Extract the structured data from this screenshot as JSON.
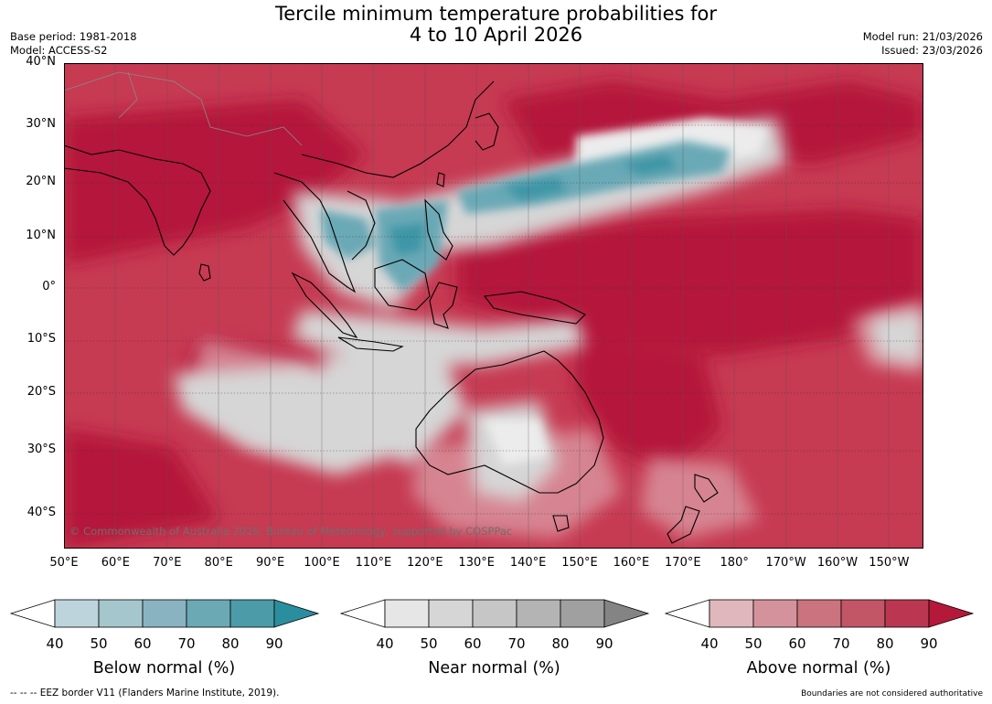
{
  "title": {
    "line1": "Tercile minimum temperature probabilities for",
    "line2": "4 to 10 April 2026"
  },
  "meta": {
    "base_period": "Base period: 1981-2018",
    "model": "Model: ACCESS-S2",
    "model_run": "Model run: 21/03/2026",
    "issued": "Issued: 23/03/2026"
  },
  "map": {
    "lat_labels": [
      "40°N",
      "30°N",
      "20°N",
      "10°N",
      "0°",
      "10°S",
      "20°S",
      "30°S",
      "40°S"
    ],
    "lon_labels": [
      "50°E",
      "60°E",
      "70°E",
      "80°E",
      "90°E",
      "100°E",
      "110°E",
      "120°E",
      "130°E",
      "140°E",
      "150°E",
      "160°E",
      "170°E",
      "180°",
      "170°W",
      "160°W",
      "150°W"
    ],
    "copyright": "© Commonwealth of Australia 2026, Bureau of Meteorology, supported by COSPPac",
    "colors": {
      "above_dominant": "#b5193a",
      "ocean_background": "#c63a52",
      "near_normal": "#d9d9d9",
      "below_normal": "#5ba3b2",
      "land_outline": "#000000"
    }
  },
  "colorbars": [
    {
      "name": "below",
      "title": "Below normal (%)",
      "ticks": [
        "40",
        "50",
        "60",
        "70",
        "80",
        "90"
      ],
      "colors": [
        "#ffffff",
        "#bdd4dc",
        "#a5c6cd",
        "#8ab3c1",
        "#6ba9b5",
        "#4c9ba9",
        "#2a8e9e"
      ]
    },
    {
      "name": "near",
      "title": "Near normal (%)",
      "ticks": [
        "40",
        "50",
        "60",
        "70",
        "80",
        "90"
      ],
      "colors": [
        "#ffffff",
        "#e6e6e6",
        "#d6d6d6",
        "#c6c6c6",
        "#b4b4b4",
        "#a0a0a0",
        "#848484"
      ]
    },
    {
      "name": "above",
      "title": "Above normal (%)",
      "ticks": [
        "40",
        "50",
        "60",
        "70",
        "80",
        "90"
      ],
      "colors": [
        "#ffffff",
        "#e0b7bd",
        "#d4939c",
        "#cb737e",
        "#c25566",
        "#bb3751",
        "#b5193a"
      ]
    }
  ],
  "footer": {
    "eez_note": "--  --  -- EEZ border V11 (Flanders Marine Institute, 2019).",
    "boundaries_note": "Boundaries are not considered authoritative"
  }
}
